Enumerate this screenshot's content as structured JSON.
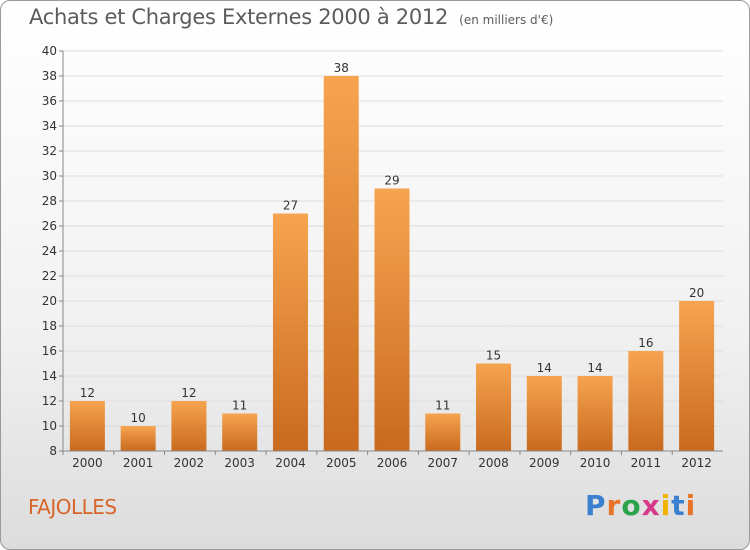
{
  "title": "Achats et Charges Externes 2000 à 2012",
  "unit": "(en milliers d'€)",
  "commune": "FAJOLLES",
  "logo": {
    "text": "Proxiti",
    "colors": [
      "#3b7fd0",
      "#e8742a",
      "#2aa34a",
      "#d63a8a",
      "#f0b400",
      "#3b7fd0",
      "#e8742a"
    ]
  },
  "colors": {
    "bar_top": "#f6a450",
    "bar_bottom": "#c96a1e",
    "title": "#5c5c5c",
    "commune": "#d6662a"
  },
  "chart_data": {
    "type": "bar",
    "categories": [
      "2000",
      "2001",
      "2002",
      "2003",
      "2004",
      "2005",
      "2006",
      "2007",
      "2008",
      "2009",
      "2010",
      "2011",
      "2012"
    ],
    "values": [
      12,
      10,
      12,
      11,
      27,
      38,
      29,
      11,
      15,
      14,
      14,
      16,
      20
    ],
    "ylim": [
      8,
      40
    ],
    "yticks": [
      8,
      10,
      12,
      14,
      16,
      18,
      20,
      22,
      24,
      26,
      28,
      30,
      32,
      34,
      36,
      38,
      40
    ],
    "grid": true
  }
}
